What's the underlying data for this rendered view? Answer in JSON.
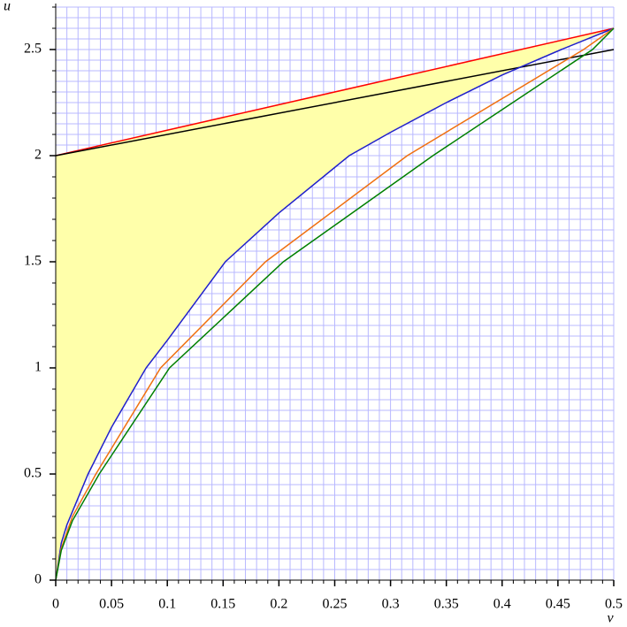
{
  "chart_data": {
    "type": "line",
    "x_label": "v",
    "y_label": "u",
    "xlim": [
      0,
      0.5
    ],
    "ylim": [
      0,
      2.7
    ],
    "xticks": [
      0,
      0.05,
      0.1,
      0.15,
      0.2,
      0.25,
      0.3,
      0.35,
      0.4,
      0.45,
      0.5
    ],
    "yticks": [
      0,
      0.5,
      1,
      1.5,
      2,
      2.5
    ],
    "grid": true,
    "grid_color": "#b8b8ff",
    "grid_x_step": 0.01,
    "grid_y_step": 0.05,
    "minor_xtick_step": 0.01,
    "minor_ytick_step": 0.1,
    "fill_color": "#ffffaa",
    "fill_between": [
      0,
      2
    ],
    "series": [
      {
        "color": "#ff0000",
        "x": [
          0,
          0.5
        ],
        "values": [
          2,
          2.6
        ]
      },
      {
        "color": "#000000",
        "x": [
          0,
          0.5
        ],
        "values": [
          2,
          2.5
        ]
      },
      {
        "color": "#2020cc",
        "x": [
          0,
          0.005,
          0.01,
          0.029,
          0.05,
          0.081,
          0.1,
          0.152,
          0.2,
          0.263,
          0.3,
          0.35,
          0.4,
          0.453,
          0.5
        ],
        "values": [
          0,
          0.175,
          0.26,
          0.5,
          0.72,
          1,
          1.13,
          1.5,
          1.73,
          2,
          2.11,
          2.25,
          2.38,
          2.5,
          2.6
        ]
      },
      {
        "color": "#f07010",
        "x": [
          0,
          0.005,
          0.015,
          0.036,
          0.094,
          0.188,
          0.315,
          0.473,
          0.5
        ],
        "values": [
          0,
          0.15,
          0.3,
          0.5,
          1,
          1.5,
          2,
          2.5,
          2.6
        ]
      },
      {
        "color": "#008000",
        "x": [
          0,
          0.005,
          0.015,
          0.039,
          0.102,
          0.204,
          0.338,
          0.481,
          0.5
        ],
        "values": [
          0,
          0.14,
          0.28,
          0.5,
          1,
          1.5,
          2,
          2.5,
          2.6
        ]
      }
    ]
  }
}
